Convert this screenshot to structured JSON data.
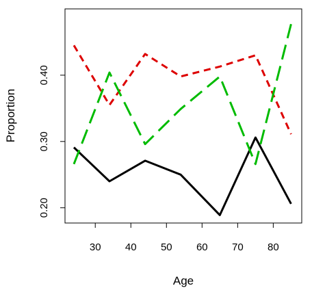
{
  "chart_data": {
    "type": "line",
    "title": "",
    "xlabel": "Age",
    "ylabel": "Proportion",
    "x": [
      24,
      34,
      44,
      54,
      65,
      75,
      85
    ],
    "xlim": [
      21.5,
      88
    ],
    "ylim": [
      0.177,
      0.5
    ],
    "xticks": [
      30,
      40,
      50,
      60,
      70,
      80
    ],
    "yticks": [
      0.2,
      0.3,
      0.4
    ],
    "ytick_labels": [
      "0.20",
      "0.30",
      "0.40"
    ],
    "grid": false,
    "series": [
      {
        "color": "#000000",
        "dash": "solid",
        "values": [
          0.291,
          0.24,
          0.271,
          0.25,
          0.189,
          0.306,
          0.206
        ]
      },
      {
        "color": "#dd0000",
        "dash": "short",
        "values": [
          0.445,
          0.355,
          0.432,
          0.398,
          0.413,
          0.43,
          0.311
        ]
      },
      {
        "color": "#00bb00",
        "dash": "long",
        "values": [
          0.266,
          0.404,
          0.296,
          0.349,
          0.398,
          0.266,
          0.477
        ]
      }
    ]
  }
}
